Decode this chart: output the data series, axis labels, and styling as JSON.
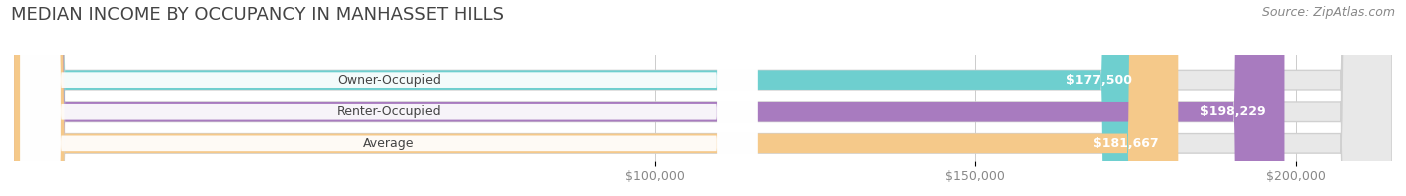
{
  "title": "MEDIAN INCOME BY OCCUPANCY IN MANHASSET HILLS",
  "source": "Source: ZipAtlas.com",
  "categories": [
    "Owner-Occupied",
    "Renter-Occupied",
    "Average"
  ],
  "values": [
    177500,
    198229,
    181667
  ],
  "labels": [
    "$177,500",
    "$198,229",
    "$181,667"
  ],
  "bar_colors": [
    "#6ecfcf",
    "#a87bbf",
    "#f5c98a"
  ],
  "bar_bg_color": "#e8e8e8",
  "xlim_min": 0,
  "xlim_max": 215000,
  "xticks": [
    100000,
    150000,
    200000
  ],
  "xtick_labels": [
    "$100,000",
    "$150,000",
    "$200,000"
  ],
  "title_fontsize": 13,
  "source_fontsize": 9,
  "label_fontsize": 9,
  "tick_fontsize": 9,
  "cat_fontsize": 9,
  "bar_height": 0.62,
  "background_color": "#ffffff"
}
